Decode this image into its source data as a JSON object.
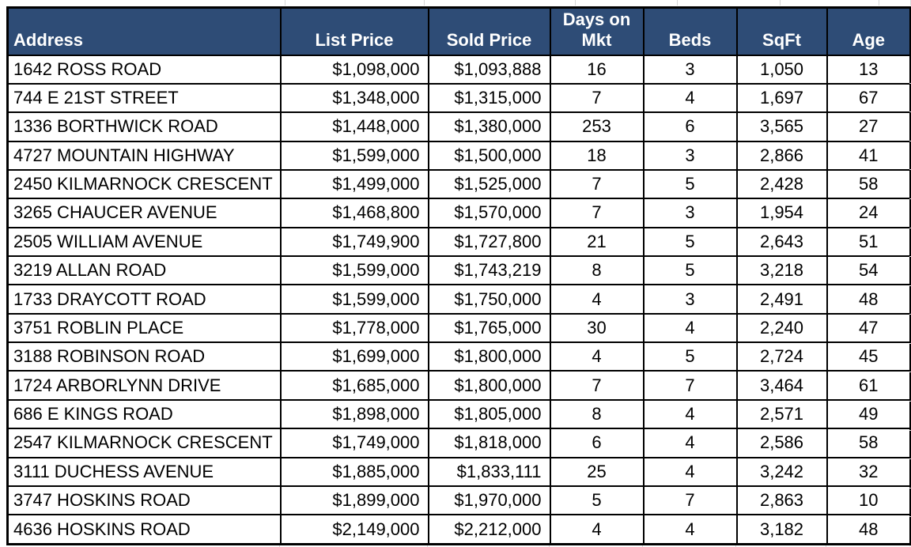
{
  "table": {
    "columns": [
      {
        "key": "address",
        "label": "Address",
        "align": "left"
      },
      {
        "key": "list_price",
        "label": "List Price",
        "align": "right"
      },
      {
        "key": "sold_price",
        "label": "Sold Price",
        "align": "right"
      },
      {
        "key": "days_on_mkt",
        "label": "Days on Mkt",
        "align": "center"
      },
      {
        "key": "beds",
        "label": "Beds",
        "align": "center"
      },
      {
        "key": "sqft",
        "label": "SqFt",
        "align": "center"
      },
      {
        "key": "age",
        "label": "Age",
        "align": "center"
      }
    ],
    "rows": [
      [
        "1642 ROSS ROAD",
        "$1,098,000",
        "$1,093,888",
        "16",
        "3",
        "1,050",
        "13"
      ],
      [
        "744 E 21ST STREET",
        "$1,348,000",
        "$1,315,000",
        "7",
        "4",
        "1,697",
        "67"
      ],
      [
        "1336 BORTHWICK ROAD",
        "$1,448,000",
        "$1,380,000",
        "253",
        "6",
        "3,565",
        "27"
      ],
      [
        "4727 MOUNTAIN HIGHWAY",
        "$1,599,000",
        "$1,500,000",
        "18",
        "3",
        "2,866",
        "41"
      ],
      [
        "2450 KILMARNOCK CRESCENT",
        "$1,499,000",
        "$1,525,000",
        "7",
        "5",
        "2,428",
        "58"
      ],
      [
        "3265 CHAUCER AVENUE",
        "$1,468,800",
        "$1,570,000",
        "7",
        "3",
        "1,954",
        "24"
      ],
      [
        "2505 WILLIAM AVENUE",
        "$1,749,900",
        "$1,727,800",
        "21",
        "5",
        "2,643",
        "51"
      ],
      [
        "3219 ALLAN ROAD",
        "$1,599,000",
        "$1,743,219",
        "8",
        "5",
        "3,218",
        "54"
      ],
      [
        "1733 DRAYCOTT ROAD",
        "$1,599,000",
        "$1,750,000",
        "4",
        "3",
        "2,491",
        "48"
      ],
      [
        "3751 ROBLIN PLACE",
        "$1,778,000",
        "$1,765,000",
        "30",
        "4",
        "2,240",
        "47"
      ],
      [
        "3188 ROBINSON ROAD",
        "$1,699,000",
        "$1,800,000",
        "4",
        "5",
        "2,724",
        "45"
      ],
      [
        "1724 ARBORLYNN DRIVE",
        "$1,685,000",
        "$1,800,000",
        "7",
        "7",
        "3,464",
        "61"
      ],
      [
        "686 E KINGS ROAD",
        "$1,898,000",
        "$1,805,000",
        "8",
        "4",
        "2,571",
        "49"
      ],
      [
        "2547 KILMARNOCK CRESCENT",
        "$1,749,000",
        "$1,818,000",
        "6",
        "4",
        "2,586",
        "58"
      ],
      [
        "3111 DUCHESS AVENUE",
        "$1,885,000",
        "$1,833,111",
        "25",
        "4",
        "3,242",
        "32"
      ],
      [
        "3747 HOSKINS ROAD",
        "$1,899,000",
        "$1,970,000",
        "5",
        "7",
        "2,863",
        "10"
      ],
      [
        "4636 HOSKINS ROAD",
        "$2,149,000",
        "$2,212,000",
        "4",
        "4",
        "3,182",
        "48"
      ]
    ]
  },
  "colors": {
    "header_bg": "#2E4C76",
    "header_text": "#FFFFFF",
    "cell_text": "#000000",
    "table_border": "#000000",
    "sheet_gridline": "#D8D8D8"
  }
}
